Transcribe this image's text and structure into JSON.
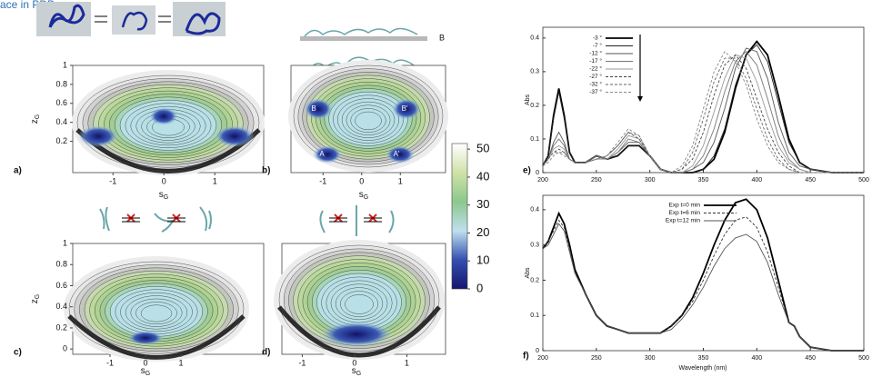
{
  "caption_fragment": "ace in PDB.",
  "structure_labels": [
    "B",
    "A"
  ],
  "chart_data": [
    {
      "type": "contour",
      "label": "a)",
      "xlabel": {
        "main": "s",
        "sub": "G"
      },
      "ylabel": {
        "main": "z",
        "sub": "G"
      },
      "xlim": [
        -1.79,
        1.96
      ],
      "ylim": [
        -0.13,
        1
      ],
      "xticks": [
        -1,
        0,
        1
      ],
      "yticks": [
        0.2,
        0.4,
        0.6,
        0.8,
        1
      ]
    },
    {
      "type": "contour",
      "label": "b)",
      "xlabel": {
        "main": "s",
        "sub": "G"
      },
      "xlim": [
        -1.83,
        2.17
      ],
      "ylim": [
        -0.13,
        1
      ],
      "xticks": [
        -1,
        0,
        1
      ],
      "annotations": [
        "B",
        "B'",
        "A",
        "A'"
      ]
    },
    {
      "type": "contour",
      "label": "c)",
      "xlabel": {
        "main": "s",
        "sub": "G"
      },
      "ylabel": {
        "main": "z",
        "sub": "G"
      },
      "xlim": [
        -2.05,
        3.33
      ],
      "ylim": [
        -0.05,
        1
      ],
      "xticks": [
        -1,
        0,
        1
      ],
      "yticks": [
        0,
        0.2,
        0.4,
        0.6,
        0.8,
        1
      ]
    },
    {
      "type": "contour",
      "label": "d)",
      "xlabel": {
        "main": "s",
        "sub": "G"
      },
      "xlim": [
        -1.39,
        1.74
      ],
      "ylim": [
        -0.05,
        1
      ],
      "xticks": [
        -1,
        0,
        1
      ]
    },
    {
      "type": "colorbar",
      "ylim": [
        0,
        52
      ],
      "yticks": [
        0,
        10,
        20,
        30,
        40,
        50
      ],
      "colors": [
        "#15156e",
        "#3550b0",
        "#bfe0ee",
        "#8cc88c",
        "#cfe2a8",
        "#ffffff"
      ]
    },
    {
      "type": "line",
      "label": "e)",
      "ylabel": "Abs",
      "xlim": [
        200,
        500
      ],
      "ylim": [
        0,
        0.432
      ],
      "xticks": [
        200,
        250,
        300,
        350,
        400,
        450,
        500
      ],
      "yticks": [
        0,
        0.1,
        0.2,
        0.3,
        0.4
      ],
      "legend": "top-left",
      "x": [
        200,
        205,
        210,
        215,
        220,
        225,
        230,
        240,
        250,
        260,
        270,
        280,
        290,
        300,
        310,
        320,
        330,
        340,
        350,
        360,
        370,
        380,
        390,
        400,
        410,
        420,
        430,
        440,
        450,
        470,
        500
      ],
      "series": [
        {
          "name": "-3 °",
          "color": "#000000",
          "style": "bold",
          "values": [
            0.02,
            0.05,
            0.17,
            0.25,
            0.17,
            0.06,
            0.03,
            0.03,
            0.05,
            0.04,
            0.05,
            0.08,
            0.08,
            0.05,
            0.01,
            0,
            0,
            0,
            0.01,
            0.04,
            0.12,
            0.25,
            0.35,
            0.39,
            0.35,
            0.23,
            0.1,
            0.03,
            0.01,
            0,
            0
          ]
        },
        {
          "name": "-7 °",
          "color": "#222222",
          "style": "solid",
          "values": [
            0.02,
            0.05,
            0.16,
            0.24,
            0.16,
            0.06,
            0.03,
            0.03,
            0.05,
            0.04,
            0.05,
            0.08,
            0.08,
            0.05,
            0.01,
            0,
            0,
            0,
            0.01,
            0.05,
            0.13,
            0.26,
            0.35,
            0.38,
            0.33,
            0.21,
            0.09,
            0.03,
            0.01,
            0,
            0
          ]
        },
        {
          "name": "-12 °",
          "color": "#555555",
          "style": "solid",
          "values": [
            0.02,
            0.04,
            0.09,
            0.12,
            0.09,
            0.04,
            0.03,
            0.03,
            0.05,
            0.04,
            0.06,
            0.09,
            0.09,
            0.05,
            0.01,
            0,
            0,
            0.01,
            0.03,
            0.09,
            0.19,
            0.31,
            0.37,
            0.36,
            0.28,
            0.15,
            0.06,
            0.02,
            0.01,
            0,
            0
          ]
        },
        {
          "name": "-17 °",
          "color": "#777777",
          "style": "solid",
          "values": [
            0.02,
            0.04,
            0.08,
            0.1,
            0.08,
            0.04,
            0.03,
            0.03,
            0.05,
            0.04,
            0.06,
            0.1,
            0.09,
            0.05,
            0.01,
            0,
            0,
            0.01,
            0.05,
            0.13,
            0.24,
            0.33,
            0.36,
            0.32,
            0.22,
            0.11,
            0.04,
            0.01,
            0,
            0,
            0
          ]
        },
        {
          "name": "-22 °",
          "color": "#999999",
          "style": "solid",
          "values": [
            0.02,
            0.04,
            0.07,
            0.08,
            0.07,
            0.04,
            0.03,
            0.03,
            0.04,
            0.04,
            0.07,
            0.11,
            0.1,
            0.05,
            0.01,
            0,
            0,
            0.02,
            0.08,
            0.18,
            0.28,
            0.35,
            0.34,
            0.27,
            0.17,
            0.08,
            0.03,
            0.01,
            0,
            0,
            0
          ]
        },
        {
          "name": "-27 °",
          "color": "#444444",
          "style": "dashed",
          "values": [
            0.02,
            0.04,
            0.06,
            0.07,
            0.06,
            0.04,
            0.03,
            0.03,
            0.04,
            0.05,
            0.08,
            0.12,
            0.1,
            0.05,
            0.01,
            0,
            0.01,
            0.04,
            0.12,
            0.23,
            0.32,
            0.35,
            0.31,
            0.22,
            0.13,
            0.06,
            0.02,
            0,
            0,
            0,
            0
          ]
        },
        {
          "name": "-32 °",
          "color": "#666666",
          "style": "dashed",
          "values": [
            0.02,
            0.04,
            0.06,
            0.06,
            0.06,
            0.04,
            0.03,
            0.03,
            0.04,
            0.05,
            0.08,
            0.12,
            0.11,
            0.05,
            0.01,
            0,
            0.01,
            0.06,
            0.16,
            0.27,
            0.34,
            0.34,
            0.28,
            0.19,
            0.1,
            0.04,
            0.01,
            0,
            0,
            0,
            0
          ]
        },
        {
          "name": "-37 °",
          "color": "#888888",
          "style": "dashed",
          "values": [
            0.02,
            0.03,
            0.05,
            0.06,
            0.05,
            0.04,
            0.03,
            0.03,
            0.04,
            0.05,
            0.09,
            0.13,
            0.11,
            0.05,
            0.01,
            0,
            0.02,
            0.08,
            0.19,
            0.3,
            0.36,
            0.33,
            0.26,
            0.16,
            0.08,
            0.03,
            0.01,
            0,
            0,
            0,
            0
          ]
        }
      ]
    },
    {
      "type": "line",
      "label": "f)",
      "ylabel": "Abs",
      "xlabel": "Wavelength (nm)",
      "xlim": [
        200,
        500
      ],
      "ylim": [
        0,
        0.441
      ],
      "xticks": [
        200,
        250,
        300,
        350,
        400,
        450,
        500
      ],
      "yticks": [
        0,
        0.1,
        0.2,
        0.3,
        0.4
      ],
      "legend": "top-center",
      "x": [
        200,
        205,
        210,
        215,
        220,
        225,
        230,
        240,
        250,
        260,
        270,
        280,
        290,
        300,
        310,
        320,
        330,
        340,
        350,
        360,
        370,
        380,
        390,
        400,
        410,
        420,
        430,
        435,
        440,
        450,
        470,
        500
      ],
      "series": [
        {
          "name": "Exp t=0 min",
          "color": "#000000",
          "style": "bold",
          "values": [
            0.29,
            0.31,
            0.35,
            0.39,
            0.36,
            0.3,
            0.23,
            0.16,
            0.1,
            0.07,
            0.06,
            0.05,
            0.05,
            0.05,
            0.05,
            0.07,
            0.1,
            0.15,
            0.22,
            0.3,
            0.37,
            0.42,
            0.43,
            0.4,
            0.32,
            0.2,
            0.08,
            0.07,
            0.04,
            0.01,
            0,
            0
          ]
        },
        {
          "name": "Exp t=6 min",
          "color": "#333333",
          "style": "dashed",
          "values": [
            0.29,
            0.31,
            0.34,
            0.37,
            0.35,
            0.29,
            0.22,
            0.16,
            0.1,
            0.07,
            0.06,
            0.05,
            0.05,
            0.05,
            0.05,
            0.07,
            0.1,
            0.14,
            0.2,
            0.27,
            0.33,
            0.37,
            0.38,
            0.35,
            0.28,
            0.18,
            0.08,
            0.07,
            0.04,
            0.01,
            0,
            0
          ]
        },
        {
          "name": "Exp t=12 min",
          "color": "#555555",
          "style": "solid",
          "values": [
            0.29,
            0.3,
            0.33,
            0.36,
            0.34,
            0.28,
            0.22,
            0.16,
            0.1,
            0.07,
            0.06,
            0.05,
            0.05,
            0.05,
            0.05,
            0.06,
            0.09,
            0.13,
            0.18,
            0.24,
            0.29,
            0.32,
            0.33,
            0.31,
            0.25,
            0.16,
            0.08,
            0.07,
            0.04,
            0.01,
            0,
            0
          ]
        }
      ]
    }
  ]
}
